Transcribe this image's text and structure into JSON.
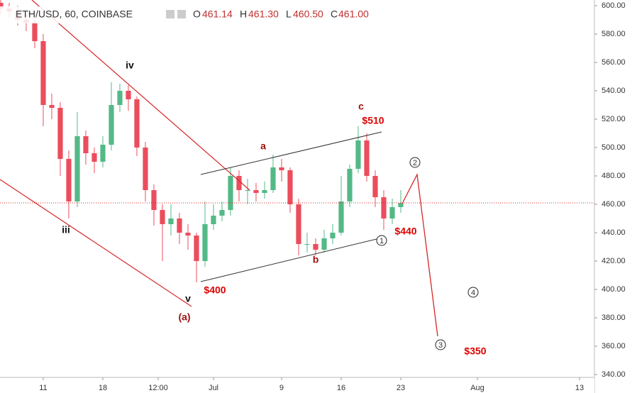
{
  "header": {
    "symbol": "ETH/USD, 60, COINBASE",
    "open_label": "O",
    "open": "461.14",
    "high_label": "H",
    "high": "461.30",
    "low_label": "L",
    "low": "460.50",
    "close_label": "C",
    "close": "461.00"
  },
  "chart_data": {
    "type": "candlestick",
    "up_color": "#53b987",
    "down_color": "#eb4d5c",
    "x": [
      6,
      7,
      8,
      9,
      10,
      11,
      12,
      13,
      14,
      15,
      16,
      17,
      18,
      19,
      20,
      21,
      22,
      23,
      24,
      25,
      26,
      27,
      28,
      29,
      30,
      31,
      32,
      33,
      34,
      35,
      36,
      37,
      38,
      39,
      40,
      41,
      42,
      43,
      44,
      45,
      46,
      47,
      48,
      49,
      50,
      51,
      52,
      53
    ],
    "open": [
      602,
      598,
      596,
      590,
      588,
      575,
      530,
      528,
      492,
      462,
      508,
      496,
      490,
      502,
      530,
      540,
      534,
      500,
      470,
      456,
      446,
      450,
      440,
      438,
      420,
      446,
      452,
      456,
      480,
      470,
      470,
      468,
      470,
      486,
      484,
      460,
      432,
      432,
      428,
      436,
      440,
      462,
      485,
      505,
      480,
      465,
      450,
      458
    ],
    "high": [
      605,
      602,
      600,
      595,
      590,
      580,
      538,
      532,
      498,
      525,
      512,
      500,
      508,
      546,
      545,
      544,
      536,
      504,
      474,
      460,
      460,
      454,
      446,
      440,
      462,
      460,
      462,
      486,
      484,
      478,
      475,
      476,
      495,
      492,
      486,
      464,
      440,
      436,
      442,
      446,
      480,
      488,
      515,
      510,
      484,
      470,
      464,
      470
    ],
    "low": [
      594,
      592,
      586,
      582,
      570,
      515,
      520,
      480,
      450,
      458,
      488,
      482,
      486,
      498,
      525,
      526,
      494,
      462,
      445,
      420,
      438,
      432,
      428,
      405,
      416,
      442,
      448,
      452,
      462,
      460,
      462,
      464,
      468,
      476,
      454,
      424,
      426,
      424,
      426,
      432,
      438,
      458,
      482,
      476,
      458,
      442,
      446,
      454
    ],
    "close": [
      598,
      596,
      590,
      588,
      575,
      530,
      528,
      492,
      462,
      508,
      496,
      490,
      502,
      530,
      540,
      534,
      500,
      470,
      456,
      446,
      450,
      440,
      438,
      420,
      446,
      452,
      456,
      480,
      470,
      470,
      468,
      470,
      486,
      484,
      460,
      432,
      432,
      428,
      436,
      440,
      462,
      485,
      505,
      480,
      465,
      450,
      458,
      461
    ],
    "xlim": [
      5.92,
      75.75
    ],
    "xticks": [
      {
        "value": 11,
        "label": "11"
      },
      {
        "value": 18,
        "label": "18"
      },
      {
        "value": 24.5,
        "label": "12:00"
      },
      {
        "value": 31,
        "label": "Jul"
      },
      {
        "value": 39,
        "label": "9"
      },
      {
        "value": 46,
        "label": "16"
      },
      {
        "value": 53,
        "label": "23"
      },
      {
        "value": 62,
        "label": "Aug"
      },
      {
        "value": 74,
        "label": "13"
      }
    ],
    "ylim": [
      340,
      600
    ],
    "yticks": [
      {
        "value": 340,
        "label": "340.00"
      },
      {
        "value": 360,
        "label": "360.00"
      },
      {
        "value": 380,
        "label": "380.00"
      },
      {
        "value": 400,
        "label": "400.00"
      },
      {
        "value": 420,
        "label": "420.00"
      },
      {
        "value": 440,
        "label": "440.00"
      },
      {
        "value": 460,
        "label": "460.00"
      },
      {
        "value": 480,
        "label": "480.00"
      },
      {
        "value": 500,
        "label": "500.00"
      },
      {
        "value": 520,
        "label": "520.00"
      },
      {
        "value": 540,
        "label": "540.00"
      },
      {
        "value": 560,
        "label": "560.00"
      },
      {
        "value": 580,
        "label": "580.00"
      },
      {
        "value": 600,
        "label": "600.00"
      }
    ],
    "annotations": [
      "iv",
      "iii",
      "v",
      "(a)",
      "a",
      "b",
      "c",
      "$510",
      "$400",
      "$440",
      "$350",
      "1",
      "2",
      "3",
      "4"
    ]
  }
}
